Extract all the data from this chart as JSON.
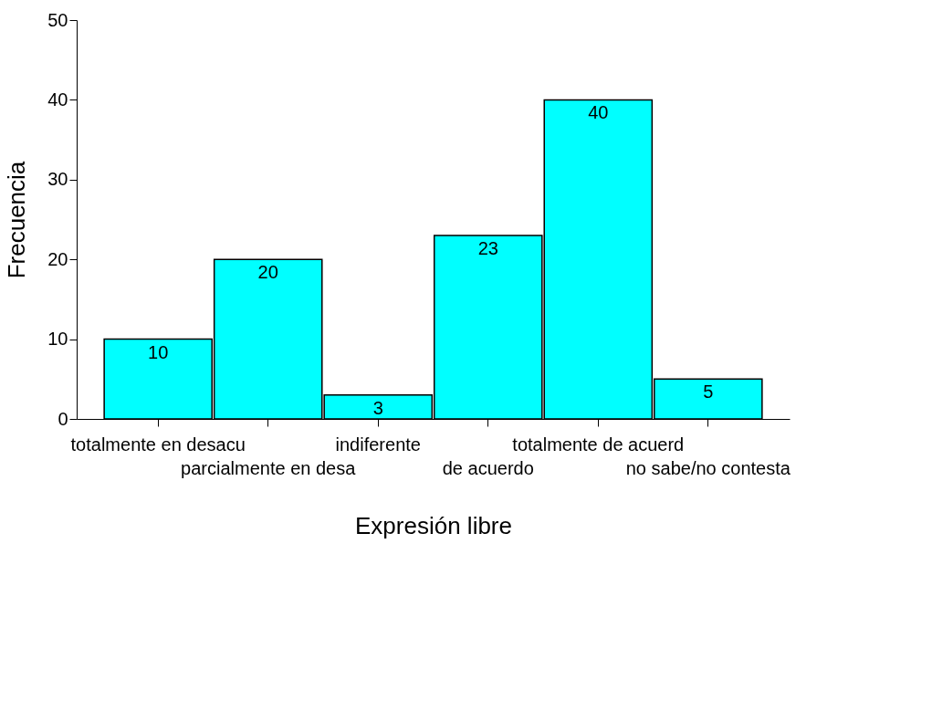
{
  "chart_data": {
    "type": "bar",
    "categories": [
      "totalmente en desacu",
      "parcialmente en desa",
      "indiferente",
      "de acuerdo",
      "totalmente de acuerd",
      "no sabe/no contesta"
    ],
    "values": [
      10,
      20,
      3,
      23,
      40,
      5
    ],
    "color": "#00ffff",
    "xlabel": "Expresión libre",
    "ylabel": "Frecuencia",
    "ylim": [
      0,
      50
    ],
    "yticks": [
      0,
      10,
      20,
      30,
      40,
      50
    ],
    "data_labels": true,
    "grid": false
  }
}
